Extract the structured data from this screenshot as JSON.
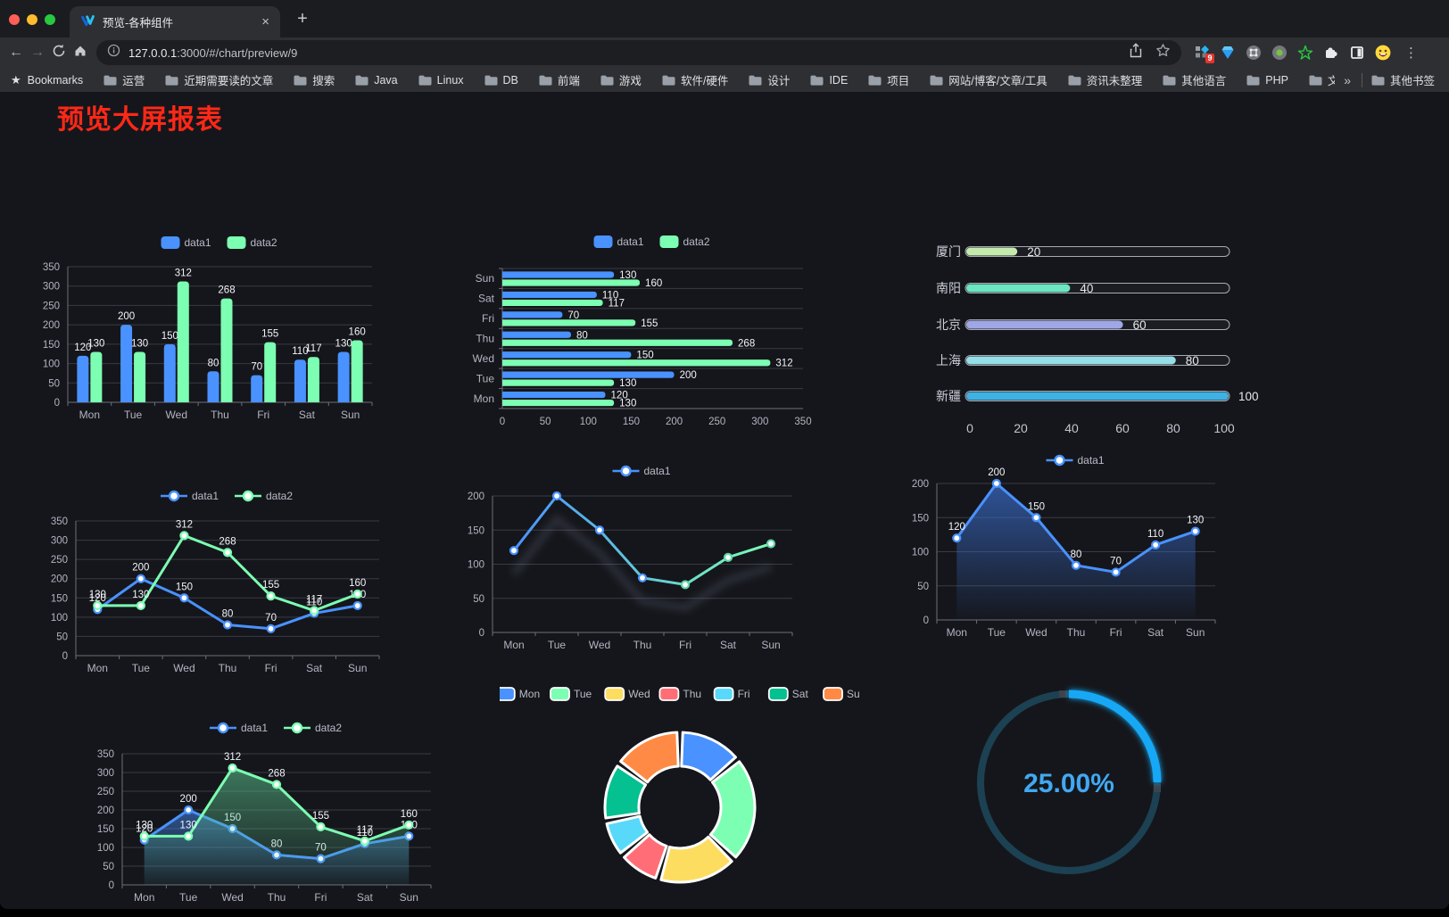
{
  "browser": {
    "traffic_lights": [
      "#ff5f57",
      "#febc2e",
      "#28c840"
    ],
    "tab": {
      "title": "预览-各种组件",
      "close_icon": "×",
      "new_tab_icon": "+"
    },
    "toolbar": {
      "back_icon": "←",
      "forward_icon": "→",
      "url_host": "127.0.0.1",
      "url_path": ":3000/#/chart/preview/9",
      "extension_badge": "9",
      "menu_icon": "⋮"
    },
    "bookmarks_bar": {
      "star_icon": "★",
      "items": [
        "Bookmarks",
        "运营",
        "近期需要读的文章",
        "搜索",
        "Java",
        "Linux",
        "DB",
        "前端",
        "游戏",
        "软件/硬件",
        "设计",
        "IDE",
        "项目",
        "网站/博客/文章/工具",
        "资讯未整理",
        "其他语言",
        "PHP",
        "文件服务器"
      ],
      "overflow_icon": "»",
      "other_bookmarks": "其他书签"
    }
  },
  "page": {
    "title": "预览大屏报表"
  },
  "palette": {
    "blue": "#4992ff",
    "green": "#7cffb2",
    "axis_text": "#b2b4c2",
    "grid": "#3a3a45",
    "value_label": "#f3f4f8",
    "background": "#15161b"
  },
  "chart_data": [
    {
      "id": "c1",
      "type": "bar",
      "legend_position": "top",
      "grid": true,
      "categories": [
        "Mon",
        "Tue",
        "Wed",
        "Thu",
        "Fri",
        "Sat",
        "Sun"
      ],
      "series": [
        {
          "name": "data1",
          "color": "#4992ff",
          "values": [
            120,
            200,
            150,
            80,
            70,
            110,
            130
          ]
        },
        {
          "name": "data2",
          "color": "#7cffb2",
          "values": [
            130,
            130,
            312,
            268,
            155,
            117,
            160
          ]
        }
      ],
      "ylim": [
        0,
        350
      ],
      "ystep": 50,
      "value_labels": true
    },
    {
      "id": "c2",
      "type": "bar-horizontal",
      "legend_position": "top",
      "categories": [
        "Mon",
        "Tue",
        "Wed",
        "Thu",
        "Fri",
        "Sat",
        "Sun"
      ],
      "series": [
        {
          "name": "data1",
          "color": "#4992ff",
          "values": [
            120,
            200,
            150,
            80,
            70,
            110,
            130
          ]
        },
        {
          "name": "data2",
          "color": "#7cffb2",
          "values": [
            130,
            130,
            312,
            268,
            155,
            117,
            160
          ]
        }
      ],
      "xlim": [
        0,
        350
      ],
      "xstep": 50,
      "value_labels": true
    },
    {
      "id": "c3",
      "type": "progress",
      "items": [
        {
          "label": "厦门",
          "value": 20,
          "color": "#c4ebad"
        },
        {
          "label": "南阳",
          "value": 40,
          "color": "#6be6c1"
        },
        {
          "label": "北京",
          "value": 60,
          "color": "#a0a7e6"
        },
        {
          "label": "上海",
          "value": 80,
          "color": "#96dee8"
        },
        {
          "label": "新疆",
          "value": 100,
          "color": "#3fb1e3"
        }
      ],
      "xlim": [
        0,
        100
      ],
      "xticks": [
        0,
        20,
        40,
        60,
        80,
        100
      ]
    },
    {
      "id": "c4",
      "type": "line",
      "legend_position": "top",
      "labels": true,
      "categories": [
        "Mon",
        "Tue",
        "Wed",
        "Thu",
        "Fri",
        "Sat",
        "Sun"
      ],
      "series": [
        {
          "name": "data1",
          "color": "#4992ff",
          "values": [
            120,
            200,
            150,
            80,
            70,
            110,
            130
          ]
        },
        {
          "name": "data2",
          "color": "#7cffb2",
          "values": [
            130,
            130,
            312,
            268,
            155,
            117,
            160
          ]
        }
      ],
      "ylim": [
        0,
        350
      ],
      "ystep": 50
    },
    {
      "id": "c5",
      "type": "line",
      "legend_position": "top",
      "labels": false,
      "shadow": true,
      "categories": [
        "Mon",
        "Tue",
        "Wed",
        "Thu",
        "Fri",
        "Sat",
        "Sun"
      ],
      "series": [
        {
          "name": "data1",
          "gradient": [
            "#4992ff",
            "#7cffb2"
          ],
          "values": [
            120,
            200,
            150,
            80,
            70,
            110,
            130
          ]
        }
      ],
      "ylim": [
        0,
        200
      ],
      "ystep": 50
    },
    {
      "id": "c6",
      "type": "area",
      "legend_position": "top",
      "labels": true,
      "categories": [
        "Mon",
        "Tue",
        "Wed",
        "Thu",
        "Fri",
        "Sat",
        "Sun"
      ],
      "series": [
        {
          "name": "data1",
          "color": "#4992ff",
          "fill": [
            "rgba(58,110,205,0.70)",
            "rgba(58,110,205,0.02)"
          ],
          "values": [
            120,
            200,
            150,
            80,
            70,
            110,
            130
          ]
        }
      ],
      "ylim": [
        0,
        200
      ],
      "ystep": 50
    },
    {
      "id": "c7",
      "type": "area",
      "legend_position": "top",
      "labels": true,
      "categories": [
        "Mon",
        "Tue",
        "Wed",
        "Thu",
        "Fri",
        "Sat",
        "Sun"
      ],
      "series": [
        {
          "name": "data1",
          "color": "#4992ff",
          "fill": [
            "rgba(73,146,255,0.50)",
            "rgba(73,146,255,0.03)"
          ],
          "values": [
            120,
            200,
            150,
            80,
            70,
            110,
            130
          ]
        },
        {
          "name": "data2",
          "color": "#7cffb2",
          "fill": [
            "rgba(92,200,145,0.55)",
            "rgba(92,200,145,0.04)"
          ],
          "values": [
            130,
            130,
            312,
            268,
            155,
            117,
            160
          ]
        }
      ],
      "ylim": [
        0,
        350
      ],
      "ystep": 50
    },
    {
      "id": "c8",
      "type": "pie",
      "legend_position": "top",
      "categories": [
        "Mon",
        "Tue",
        "Wed",
        "Thu",
        "Fri",
        "Sat",
        "Sun"
      ],
      "values": [
        120,
        200,
        150,
        80,
        70,
        110,
        130
      ],
      "colors": [
        "#4992ff",
        "#7cffb2",
        "#fddd60",
        "#ff6e76",
        "#58d9f9",
        "#05c091",
        "#ff8a45"
      ]
    },
    {
      "id": "c9",
      "type": "gauge",
      "value": 25,
      "label": "25.00%",
      "color": "#17a8f5",
      "track_color": "#1c4152"
    }
  ]
}
